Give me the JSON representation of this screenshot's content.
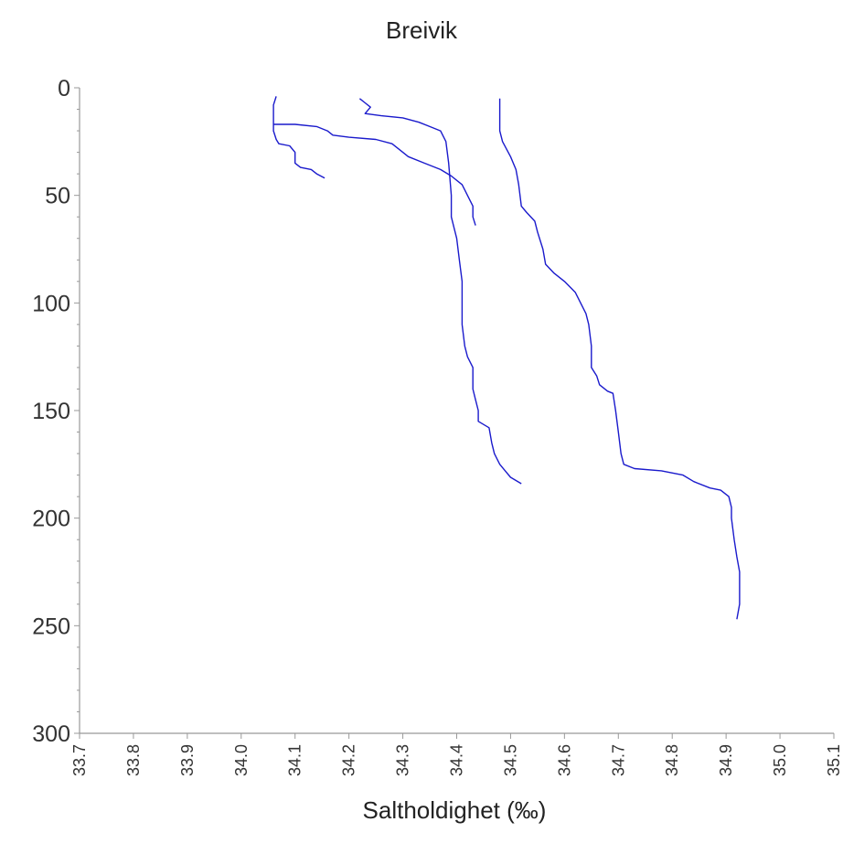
{
  "chart_data": {
    "type": "line",
    "title": "Breivik",
    "xlabel": "Saltholdighet (‰)",
    "ylabel": "",
    "xlim": [
      33.7,
      35.1
    ],
    "ylim": [
      300,
      0
    ],
    "y_inverted": true,
    "x_ticks": [
      "33.7",
      "33.8",
      "33.9",
      "34.0",
      "34.1",
      "34.2",
      "34.3",
      "34.4",
      "34.5",
      "34.6",
      "34.7",
      "34.8",
      "34.9",
      "35.0",
      "35.1"
    ],
    "y_ticks": [
      "0",
      "50",
      "100",
      "150",
      "200",
      "250",
      "300"
    ],
    "grid": false,
    "line_color": "#1a1acc",
    "series": [
      {
        "points": [
          [
            34.065,
            4
          ],
          [
            34.06,
            8
          ],
          [
            34.06,
            12
          ],
          [
            34.06,
            16
          ],
          [
            34.06,
            20
          ],
          [
            34.065,
            24
          ],
          [
            34.07,
            26
          ],
          [
            34.09,
            27
          ],
          [
            34.1,
            30
          ],
          [
            34.1,
            35
          ],
          [
            34.11,
            37
          ],
          [
            34.13,
            38
          ],
          [
            34.14,
            40
          ],
          [
            34.155,
            42
          ]
        ]
      },
      {
        "points": [
          [
            34.06,
            17
          ],
          [
            34.1,
            17
          ],
          [
            34.14,
            18
          ],
          [
            34.16,
            20
          ],
          [
            34.17,
            22
          ],
          [
            34.2,
            23
          ],
          [
            34.25,
            24
          ],
          [
            34.28,
            26
          ],
          [
            34.3,
            30
          ],
          [
            34.31,
            32
          ],
          [
            34.34,
            35
          ],
          [
            34.37,
            38
          ],
          [
            34.39,
            41
          ],
          [
            34.41,
            45
          ],
          [
            34.42,
            50
          ],
          [
            34.43,
            55
          ],
          [
            34.43,
            60
          ],
          [
            34.435,
            64
          ]
        ]
      },
      {
        "points": [
          [
            34.22,
            5
          ],
          [
            34.23,
            7
          ],
          [
            34.24,
            9
          ],
          [
            34.23,
            12
          ],
          [
            34.26,
            13
          ],
          [
            34.3,
            14
          ],
          [
            34.33,
            16
          ],
          [
            34.35,
            18
          ],
          [
            34.37,
            20
          ],
          [
            34.38,
            25
          ],
          [
            34.385,
            35
          ],
          [
            34.39,
            50
          ],
          [
            34.39,
            60
          ],
          [
            34.4,
            70
          ],
          [
            34.405,
            80
          ],
          [
            34.41,
            90
          ],
          [
            34.41,
            100
          ],
          [
            34.41,
            110
          ],
          [
            34.415,
            120
          ],
          [
            34.42,
            125
          ],
          [
            34.43,
            130
          ],
          [
            34.43,
            140
          ],
          [
            34.435,
            145
          ],
          [
            34.44,
            150
          ],
          [
            34.44,
            155
          ],
          [
            34.46,
            158
          ],
          [
            34.465,
            165
          ],
          [
            34.47,
            170
          ],
          [
            34.48,
            175
          ],
          [
            34.49,
            178
          ],
          [
            34.5,
            181
          ],
          [
            34.52,
            184
          ]
        ]
      },
      {
        "points": [
          [
            34.48,
            5
          ],
          [
            34.48,
            12
          ],
          [
            34.48,
            20
          ],
          [
            34.485,
            25
          ],
          [
            34.5,
            32
          ],
          [
            34.51,
            38
          ],
          [
            34.515,
            45
          ],
          [
            34.52,
            55
          ],
          [
            34.53,
            58
          ],
          [
            34.545,
            62
          ],
          [
            34.55,
            67
          ],
          [
            34.56,
            75
          ],
          [
            34.565,
            82
          ],
          [
            34.58,
            86
          ],
          [
            34.6,
            90
          ],
          [
            34.62,
            95
          ],
          [
            34.63,
            100
          ],
          [
            34.64,
            105
          ],
          [
            34.645,
            110
          ],
          [
            34.65,
            120
          ],
          [
            34.65,
            130
          ],
          [
            34.66,
            134
          ],
          [
            34.665,
            138
          ],
          [
            34.68,
            141
          ],
          [
            34.69,
            142
          ],
          [
            34.695,
            150
          ],
          [
            34.7,
            160
          ],
          [
            34.705,
            170
          ],
          [
            34.71,
            175
          ],
          [
            34.73,
            177
          ],
          [
            34.78,
            178
          ],
          [
            34.82,
            180
          ],
          [
            34.84,
            183
          ],
          [
            34.87,
            186
          ],
          [
            34.89,
            187
          ],
          [
            34.905,
            190
          ],
          [
            34.91,
            195
          ],
          [
            34.91,
            200
          ],
          [
            34.915,
            210
          ],
          [
            34.92,
            218
          ],
          [
            34.925,
            225
          ],
          [
            34.925,
            240
          ],
          [
            34.92,
            247
          ]
        ]
      }
    ]
  }
}
